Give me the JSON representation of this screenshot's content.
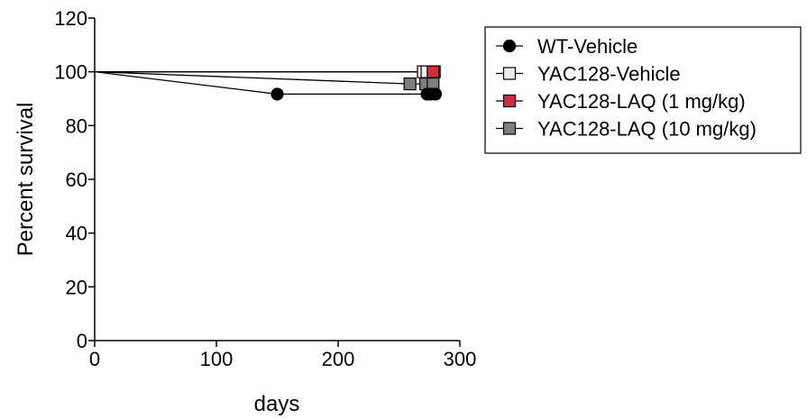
{
  "chart_data": {
    "type": "line",
    "title": "",
    "xlabel": "days",
    "ylabel": "Percent survival",
    "xlim": [
      0,
      300
    ],
    "ylim": [
      0,
      120
    ],
    "xticks": [
      0,
      100,
      200,
      300
    ],
    "yticks": [
      0,
      20,
      40,
      60,
      80,
      100,
      120
    ],
    "grid": false,
    "legend_position": "top-right",
    "series": [
      {
        "name": "WT-Vehicle",
        "marker": "circle",
        "color": "#000000",
        "step_x": [
          0,
          150,
          280
        ],
        "step_y": [
          100,
          91.7,
          91.7
        ],
        "marker_points": [
          {
            "x": 150,
            "y": 91.7
          },
          {
            "x": 273,
            "y": 91.7
          },
          {
            "x": 276,
            "y": 91.7
          },
          {
            "x": 280,
            "y": 91.7
          }
        ]
      },
      {
        "name": "YAC128-Vehicle",
        "marker": "square",
        "color": "#ececec",
        "step_x": [
          0,
          279
        ],
        "step_y": [
          100,
          100
        ],
        "marker_points": [
          {
            "x": 270,
            "y": 100
          },
          {
            "x": 273,
            "y": 100
          },
          {
            "x": 279,
            "y": 100
          }
        ]
      },
      {
        "name": "YAC128-LAQ (1 mg/kg)",
        "marker": "square",
        "color": "#d62b3a",
        "step_x": [
          0,
          278
        ],
        "step_y": [
          100,
          100
        ],
        "marker_points": [
          {
            "x": 278,
            "y": 100
          }
        ]
      },
      {
        "name": "YAC128-LAQ (10 mg/kg)",
        "marker": "square",
        "color": "#7f7f7f",
        "step_x": [
          0,
          259,
          278
        ],
        "step_y": [
          100,
          95.5,
          95.5
        ],
        "marker_points": [
          {
            "x": 259,
            "y": 95.5
          },
          {
            "x": 272,
            "y": 95.5
          },
          {
            "x": 278,
            "y": 95.5
          }
        ]
      }
    ]
  }
}
